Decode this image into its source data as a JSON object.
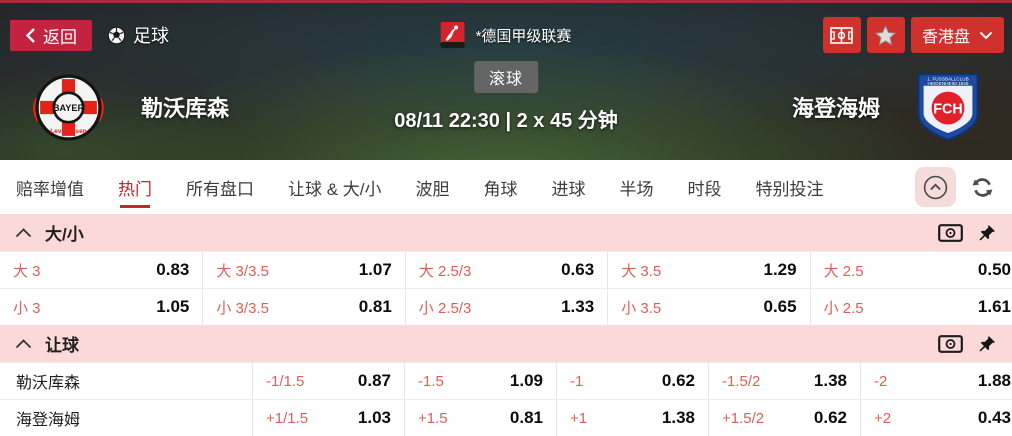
{
  "topbar": {
    "back_label": "返回",
    "sport_label": "足球",
    "league_label": "*德国甲级联赛",
    "market_selector_label": "香港盘"
  },
  "match": {
    "home_team": "勒沃库森",
    "away_team": "海登海姆",
    "away_logo_text": "FCH",
    "home_logo_text": "BAYER",
    "status_badge": "滚球",
    "time_info": "08/11 22:30 | 2 x 45 分钟"
  },
  "tabs": {
    "active": "热门",
    "items": [
      "赔率增值",
      "热门",
      "所有盘口",
      "让球 & 大/小",
      "波胆",
      "角球",
      "进球",
      "半场",
      "时段",
      "特别投注"
    ]
  },
  "sections": [
    {
      "title": "大/小",
      "rows": [
        {
          "cells": [
            {
              "label": "大 3",
              "odds": "0.83"
            },
            {
              "label": "大 3/3.5",
              "odds": "1.07"
            },
            {
              "label": "大 2.5/3",
              "odds": "0.63"
            },
            {
              "label": "大 3.5",
              "odds": "1.29"
            },
            {
              "label": "大 2.5",
              "odds": "0.50"
            }
          ]
        },
        {
          "cells": [
            {
              "label": "小 3",
              "odds": "1.05"
            },
            {
              "label": "小 3/3.5",
              "odds": "0.81"
            },
            {
              "label": "小 2.5/3",
              "odds": "1.33"
            },
            {
              "label": "小 3.5",
              "odds": "0.65"
            },
            {
              "label": "小 2.5",
              "odds": "1.61"
            }
          ]
        }
      ]
    },
    {
      "title": "让球",
      "rows": [
        {
          "team": "勒沃库森",
          "cells": [
            {
              "label": "-1/1.5",
              "odds": "0.87"
            },
            {
              "label": "-1.5",
              "odds": "1.09"
            },
            {
              "label": "-1",
              "odds": "0.62"
            },
            {
              "label": "-1.5/2",
              "odds": "1.38"
            },
            {
              "label": "-2",
              "odds": "1.88"
            }
          ]
        },
        {
          "team": "海登海姆",
          "cells": [
            {
              "label": "+1/1.5",
              "odds": "1.03"
            },
            {
              "label": "+1.5",
              "odds": "0.81"
            },
            {
              "label": "+1",
              "odds": "1.38"
            },
            {
              "label": "+1.5/2",
              "odds": "0.62"
            },
            {
              "label": "+2",
              "odds": "0.43"
            }
          ]
        }
      ]
    }
  ],
  "icons": {
    "back-icon": "left-chevron",
    "soccer-ball-icon": "soccer-ball",
    "league-logo": "bundesliga-badge",
    "pitch-icon": "football-field",
    "star-icon": "star",
    "chevron-down-icon": "chevron-down",
    "collapse-up-icon": "circled-chevron-up",
    "refresh-icon": "circular-arrows",
    "cash-icon": "banknote",
    "pin-icon": "pushpin",
    "section-chevron-up-icon": "chevron-up"
  },
  "colors": {
    "top_strip_red": "#ac2a38",
    "back_button_red": "#c2243f",
    "nav_button_red": "#d0312d",
    "active_tab_red": "#c5262c",
    "section_header_pink": "#fbd9d9",
    "odds_label_red": "#dd5f5a"
  }
}
